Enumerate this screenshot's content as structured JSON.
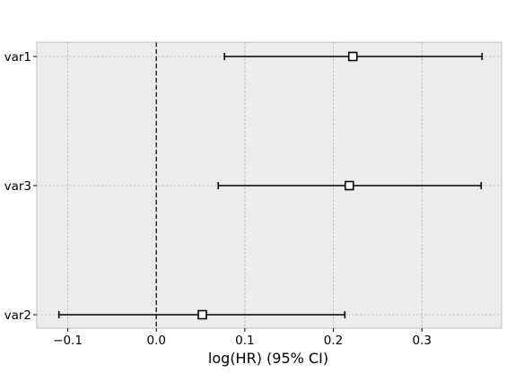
{
  "chart_data": {
    "type": "forest",
    "xlabel": "log(HR) (95% CI)",
    "xlim": [
      -0.135,
      0.39
    ],
    "xticks": [
      -0.1,
      0.0,
      0.1,
      0.2,
      0.3
    ],
    "xtick_labels": [
      "−0.1",
      "0.0",
      "0.1",
      "0.2",
      "0.3"
    ],
    "reference_line": 0.0,
    "grid": true,
    "rows": [
      {
        "label": "var1",
        "estimate": 0.222,
        "lower": 0.077,
        "upper": 0.368
      },
      {
        "label": "var3",
        "estimate": 0.218,
        "lower": 0.07,
        "upper": 0.367
      },
      {
        "label": "var2",
        "estimate": 0.052,
        "lower": -0.11,
        "upper": 0.213
      }
    ]
  },
  "colors": {
    "plot_background": "#ececec",
    "grid": "#b5b5b5",
    "marks": "#000000",
    "marker_fill": "#ffffff"
  }
}
